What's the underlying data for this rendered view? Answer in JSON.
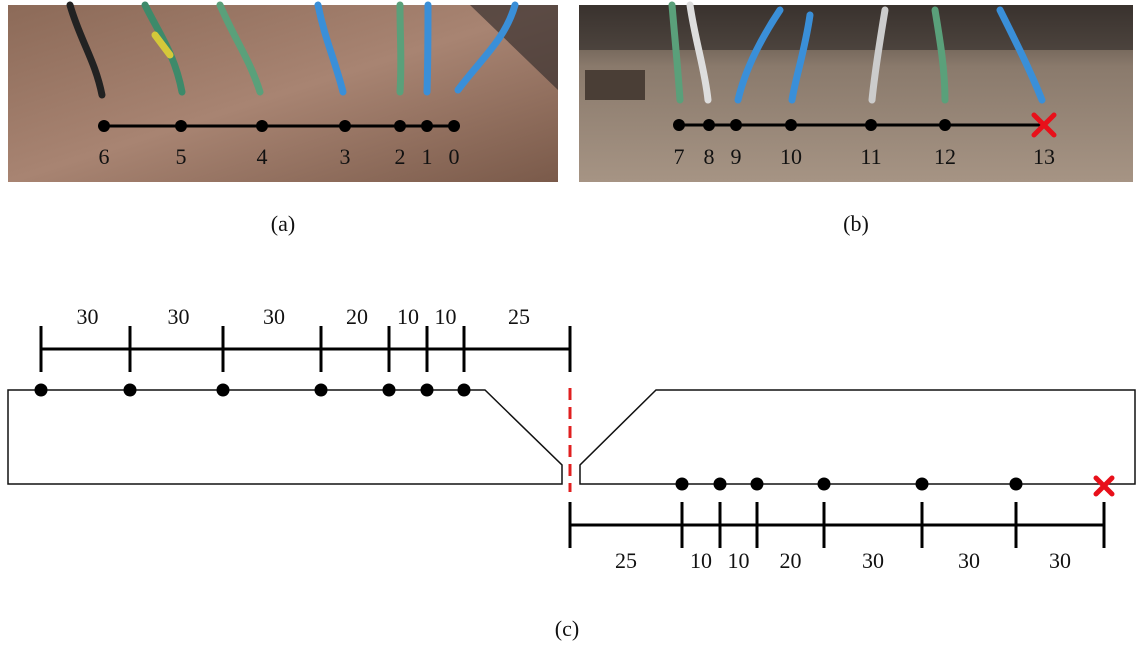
{
  "panel_a": {
    "label": "(a)",
    "points": [
      "6",
      "5",
      "4",
      "3",
      "2",
      "1",
      "0"
    ]
  },
  "panel_b": {
    "label": "(b)",
    "points": [
      "7",
      "8",
      "9",
      "10",
      "11",
      "12",
      "13"
    ]
  },
  "panel_c": {
    "label": "(c)",
    "top_dimensions": [
      "30",
      "30",
      "30",
      "20",
      "10",
      "10",
      "25"
    ],
    "bottom_dimensions": [
      "25",
      "10",
      "10",
      "20",
      "30",
      "30",
      "30"
    ]
  }
}
